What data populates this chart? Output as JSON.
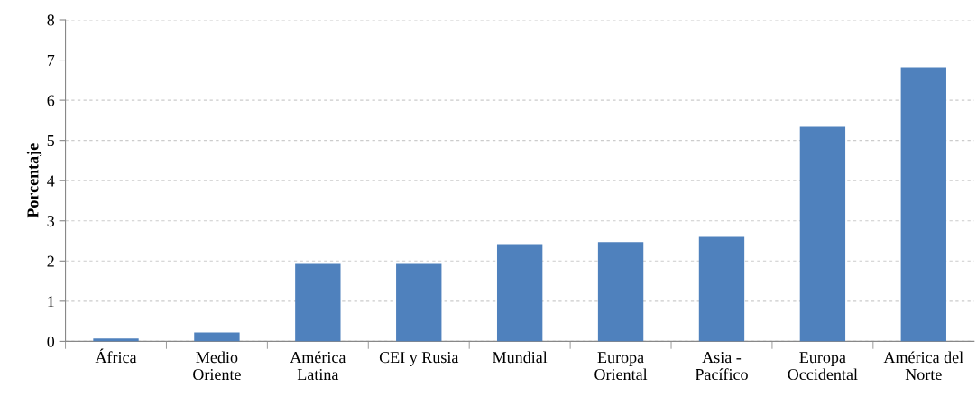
{
  "chart_data": {
    "type": "bar",
    "ylabel": "Porcentaje",
    "categories": [
      "África",
      "Medio\nOriente",
      "América\nLatina",
      "CEI y Rusia",
      "Mundial",
      "Europa\nOriental",
      "Asia -\nPacífico",
      "Europa\nOccidental",
      "América del\nNorte"
    ],
    "values": [
      0.07,
      0.22,
      1.93,
      1.93,
      2.42,
      2.47,
      2.6,
      5.34,
      6.82
    ],
    "color": "#4f81bd",
    "ylim": [
      0,
      8
    ],
    "yticks": [
      0,
      1,
      2,
      3,
      4,
      5,
      6,
      7,
      8
    ],
    "grid": "y"
  }
}
